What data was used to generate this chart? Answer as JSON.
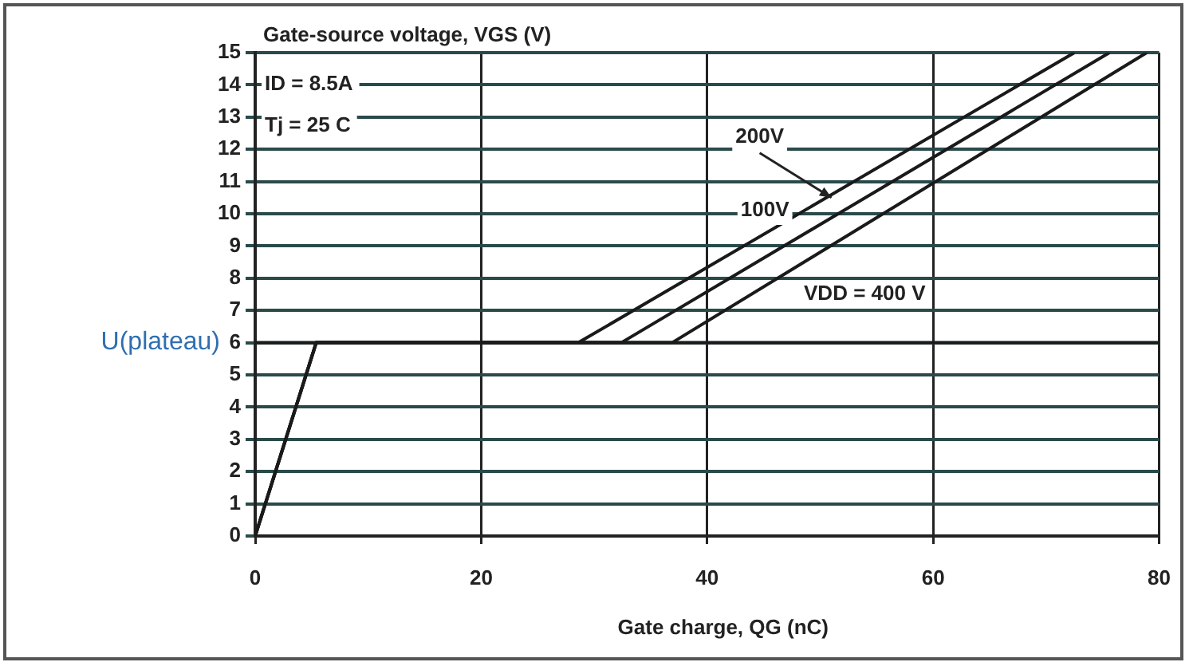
{
  "chart_data": {
    "type": "line",
    "ylabel": "Gate-source voltage, VGS (V)",
    "xlabel": "Gate charge, QG (nC)",
    "xlim": [
      0,
      80
    ],
    "xticks": [
      0,
      20,
      40,
      60,
      80
    ],
    "ylim": [
      0,
      15
    ],
    "yticks": [
      0,
      1,
      2,
      3,
      4,
      5,
      6,
      7,
      8,
      9,
      10,
      11,
      12,
      13,
      14,
      15
    ],
    "ref_lines": [
      {
        "axis": "y",
        "value": 6,
        "label": "U(plateau)"
      }
    ],
    "grid": true,
    "legend": false,
    "marker": "none",
    "line_style": "solid",
    "series": [
      {
        "color": "#1a1a1a",
        "x": [
          0,
          5.4,
          28.6,
          72.5
        ],
        "values": [
          0,
          6,
          6,
          15
        ]
      },
      {
        "color": "#1a1a1a",
        "x": [
          0,
          5.4,
          32.4,
          75.6
        ],
        "values": [
          0,
          6,
          6,
          15
        ]
      },
      {
        "color": "#1a1a1a",
        "x": [
          0,
          5.4,
          36.9,
          78.9
        ],
        "values": [
          0,
          6,
          6,
          15
        ]
      }
    ],
    "annotations": [
      "ID = 8.5A",
      "Tj = 25 C",
      {
        "text": "100V",
        "x": 48.1,
        "y": 10
      },
      {
        "text": "200V",
        "x": 51,
        "y": 10.5
      },
      {
        "text": "VDD = 400 V",
        "x": 43.9,
        "y": 7.5
      }
    ]
  }
}
